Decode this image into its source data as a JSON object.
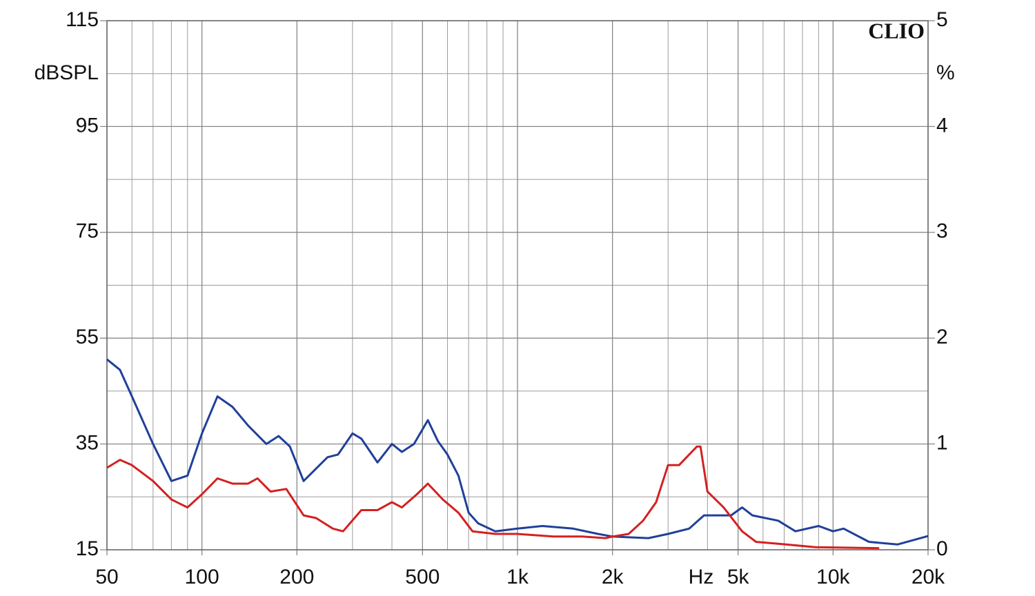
{
  "chart_data": {
    "type": "line",
    "brand": "CLIO",
    "y_axis_label": "dBSPL",
    "y2_axis_label": "%",
    "x_axis_label": "Hz",
    "xscale": "log",
    "grid": true,
    "xlim": [
      50,
      20000
    ],
    "xticks": [
      50,
      100,
      200,
      500,
      {
        "value": 1000,
        "label": "1k"
      },
      {
        "value": 2000,
        "label": "2k"
      },
      {
        "value": 5000,
        "label": "5k"
      },
      {
        "value": 10000,
        "label": "10k"
      },
      {
        "value": 20000,
        "label": "20k"
      }
    ],
    "xminor": [
      60,
      70,
      80,
      90,
      300,
      400,
      600,
      700,
      800,
      900,
      3000,
      4000,
      6000,
      7000,
      8000,
      9000
    ],
    "ylim": [
      15,
      115
    ],
    "yticks": [
      15,
      35,
      55,
      75,
      95,
      115
    ],
    "yminor": [
      25,
      45,
      65,
      85,
      105
    ],
    "y2lim": [
      0,
      5
    ],
    "y2ticks": [
      0,
      1,
      2,
      3,
      4,
      5
    ],
    "series": [
      {
        "name": "blue",
        "color": "#1f3f9a",
        "x": [
          50,
          55,
          60,
          70,
          80,
          90,
          100,
          112,
          125,
          140,
          160,
          175,
          190,
          210,
          250,
          270,
          300,
          320,
          360,
          400,
          430,
          470,
          520,
          560,
          600,
          650,
          700,
          750,
          850,
          1000,
          1200,
          1500,
          1800,
          2000,
          2600,
          3000,
          3500,
          3900,
          4750,
          5150,
          5550,
          6700,
          7600,
          9000,
          10000,
          10800,
          13000,
          16000,
          20000
        ],
        "values": [
          51,
          49,
          44,
          35,
          28,
          29,
          37,
          44,
          42,
          38.5,
          35,
          36.5,
          34.5,
          28,
          32.5,
          33,
          37,
          36,
          31.5,
          35,
          33.5,
          35,
          39.5,
          35.5,
          33,
          29,
          22,
          20,
          18.5,
          19,
          19.5,
          19,
          18,
          17.5,
          17.2,
          18,
          19,
          21.5,
          21.5,
          23,
          21.5,
          20.5,
          18.5,
          19.5,
          18.5,
          19,
          16.5,
          16,
          17.6
        ]
      },
      {
        "name": "red",
        "color": "#d42020",
        "x": [
          50,
          55,
          60,
          70,
          80,
          90,
          100,
          112,
          125,
          140,
          150,
          165,
          185,
          210,
          230,
          260,
          280,
          320,
          360,
          400,
          430,
          480,
          520,
          580,
          650,
          720,
          850,
          1000,
          1300,
          1600,
          1900,
          2000,
          2250,
          2500,
          2750,
          3000,
          3250,
          3700,
          3800,
          4000,
          4500,
          5150,
          5700,
          7100,
          8800,
          14000
        ],
        "values": [
          30.5,
          32,
          31,
          28,
          24.5,
          23,
          25.5,
          28.5,
          27.5,
          27.5,
          28.5,
          26,
          26.5,
          21.5,
          21,
          19,
          18.5,
          22.5,
          22.5,
          24,
          23,
          25.5,
          27.5,
          24.5,
          22,
          18.5,
          18,
          18,
          17.5,
          17.5,
          17.2,
          17.5,
          18,
          20.5,
          24,
          31,
          31,
          34.5,
          34.5,
          26,
          23,
          18.5,
          16.5,
          16,
          15.5,
          15.3
        ]
      }
    ]
  }
}
